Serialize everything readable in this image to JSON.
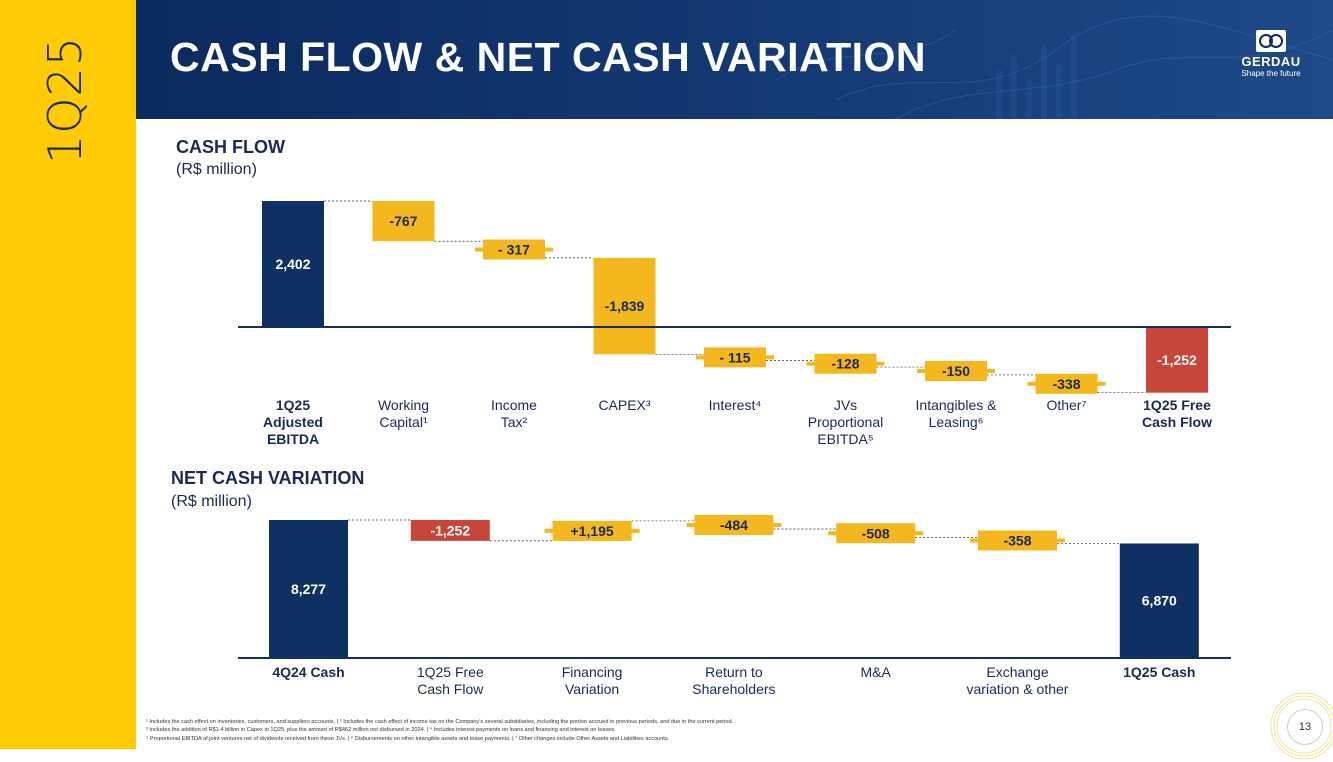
{
  "sidebar": {
    "label": "1Q25"
  },
  "header": {
    "title": "CASH FLOW & NET CASH VARIATION",
    "logo_name": "GERDAU",
    "logo_tagline": "Shape the future"
  },
  "colors": {
    "navy": "#0f3063",
    "gold": "#F4B81E",
    "red": "#C8453A",
    "sidebar": "#FFCB05"
  },
  "cash_flow_section": {
    "title": "CASH FLOW",
    "unit": "(R$ million)"
  },
  "net_cash_section": {
    "title": "NET CASH VARIATION",
    "unit": "(R$ million)"
  },
  "chart_data": [
    {
      "type": "waterfall",
      "title": "CASH FLOW",
      "subtitle": "(R$ million)",
      "categories": [
        [
          "1Q25",
          "Adjusted",
          "EBITDA"
        ],
        [
          "Working",
          "Capital¹"
        ],
        [
          "Income",
          "Tax²"
        ],
        [
          "CAPEX³"
        ],
        [
          "Interest⁴"
        ],
        [
          "JVs",
          "Proportional",
          "EBITDA⁵"
        ],
        [
          "Intangibles &",
          "Leasing⁶"
        ],
        [
          "Other⁷"
        ],
        [
          "1Q25 Free",
          "Cash Flow"
        ]
      ],
      "values": [
        2402,
        -767,
        -317,
        -1839,
        -115,
        -128,
        -150,
        -338,
        -1252
      ],
      "labels": [
        "2,402",
        "-767",
        "- 317",
        "-1,839",
        "- 115",
        "-128",
        "-150",
        "-338",
        "-1,252"
      ],
      "kinds": [
        "total",
        "delta",
        "delta",
        "delta",
        "delta",
        "delta",
        "delta",
        "delta",
        "total"
      ]
    },
    {
      "type": "waterfall",
      "title": "NET CASH VARIATION",
      "subtitle": "(R$ million)",
      "categories": [
        [
          "4Q24 Cash"
        ],
        [
          "1Q25 Free",
          "Cash Flow"
        ],
        [
          "Financing",
          "Variation"
        ],
        [
          "Return to",
          "Shareholders"
        ],
        [
          "M&A"
        ],
        [
          "Exchange",
          "variation & other"
        ],
        [
          "1Q25 Cash"
        ]
      ],
      "values": [
        8277,
        -1252,
        1195,
        -484,
        -508,
        -358,
        6870
      ],
      "labels": [
        "8,277",
        "-1,252",
        "+1,195",
        "-484",
        "-508",
        "-358",
        "6,870"
      ],
      "kinds": [
        "total",
        "delta",
        "delta",
        "delta",
        "delta",
        "delta",
        "total"
      ]
    }
  ],
  "footnotes": [
    "¹ Includes the cash effect on inventories, customers, and suppliers accounts. | ² Includes the cash effect of income tax on the Company's several subsidiaries, including the portion accrued in previous periods, and due in the current period.",
    "³ Includes the addition of R$1.4 billion in Capex in 1Q25, plus the amount of R$462 million not disbursed in 2024. | ⁴ Includes interest payments on loans and financing and interest on leases.",
    "⁵ Proportional EBITDA of joint ventures net of dividends received from these JVs. | ⁶ Disbursements on other intangible assets and lease payments. | ⁷ Other changes include Other Assets and Liabilities accounts."
  ],
  "page_number": "13"
}
